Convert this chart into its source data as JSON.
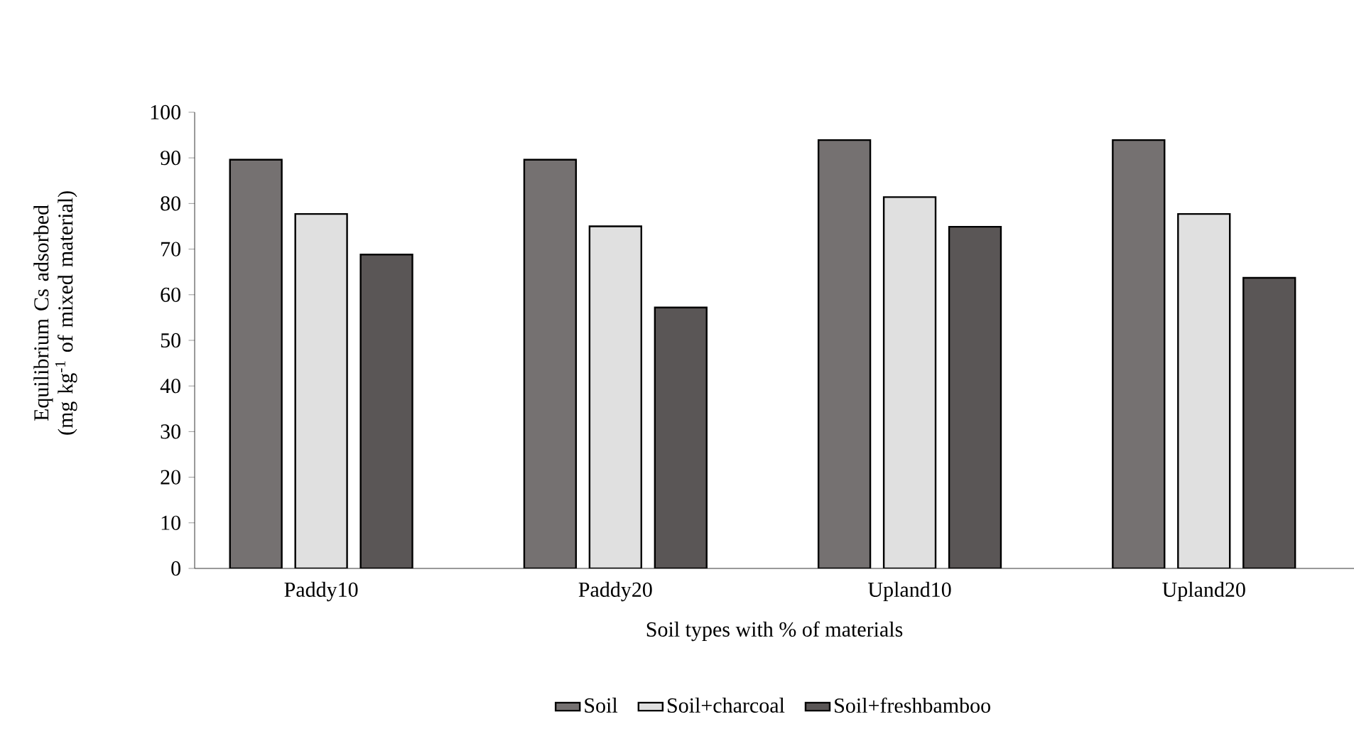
{
  "chart_data": {
    "type": "bar",
    "xlabel": "Soil types with % of materials",
    "ylabel": "Equilibrium Cs adsorbed (mg kg$^{-1}$ of mixed material)",
    "categories": [
      "Paddy10",
      "Paddy20",
      "Upland10",
      "Upland20"
    ],
    "series": [
      {
        "name": "Soil",
        "color": "#757171",
        "values": [
          89.6,
          89.6,
          93.9,
          93.9
        ]
      },
      {
        "name": "Soil+charcoal",
        "color": "#e0e0e0",
        "values": [
          77.7,
          75.0,
          81.4,
          77.7
        ]
      },
      {
        "name": "Soil+freshbamboo",
        "color": "#5a5656",
        "values": [
          68.8,
          57.2,
          74.9,
          63.7
        ]
      }
    ],
    "ylim": [
      0,
      100
    ],
    "yticks": [
      0,
      10,
      20,
      30,
      40,
      50,
      60,
      70,
      80,
      90,
      100
    ],
    "grid": false,
    "legend": "bottom"
  }
}
